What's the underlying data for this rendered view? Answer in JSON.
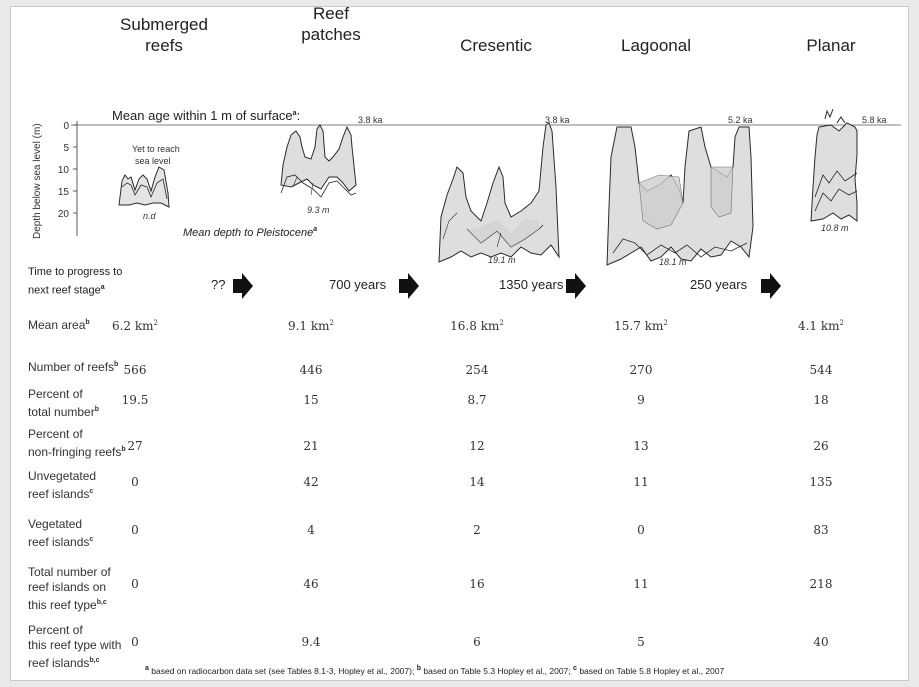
{
  "stages": [
    {
      "id": "submerged",
      "title_lines": [
        "Submerged",
        "reefs"
      ],
      "age": "",
      "depth": "n.d",
      "note_lines": [
        "Yet to reach",
        "sea level"
      ]
    },
    {
      "id": "patches",
      "title_lines": [
        "Reef",
        "patches"
      ],
      "age": "3.8 ka",
      "depth": "9.3 m"
    },
    {
      "id": "cresentic",
      "title_lines": [
        "Cresentic"
      ],
      "age": "3.8 ka",
      "depth": "19.1 m"
    },
    {
      "id": "lagoonal",
      "title_lines": [
        "Lagoonal"
      ],
      "age": "5.2 ka",
      "depth": "18.1 m"
    },
    {
      "id": "planar",
      "title_lines": [
        "Planar"
      ],
      "age": "5.8 ka",
      "depth": "10.8 m"
    }
  ],
  "diagram": {
    "mean_age_label": "Mean age within 1 m of surface",
    "mean_age_sup": "a",
    "mean_depth_label": "Mean depth to Pleistocene",
    "mean_depth_sup": "a",
    "y_axis_label": "Depth below  sea level (m)",
    "y_ticks": [
      "0",
      "5",
      "10",
      "15",
      "20"
    ]
  },
  "progress": {
    "label_lines": [
      "Time to progress to",
      "next reef stage"
    ],
    "label_sup": "a",
    "times": [
      "??",
      "700 years",
      "1350 years",
      "250 years"
    ]
  },
  "rows": [
    {
      "label_lines": [
        "Mean area"
      ],
      "sup": "b",
      "values": [
        "6.2 km",
        "9.1 km",
        "16.8 km",
        "15.7 km",
        "4.1 km"
      ],
      "value_sup": "2"
    },
    {
      "label_lines": [
        "Number of reefs"
      ],
      "sup": "b",
      "values": [
        "566",
        "446",
        "254",
        "270",
        "544"
      ]
    },
    {
      "label_lines": [
        "Percent of",
        "total number"
      ],
      "sup": "b",
      "values": [
        "19.5",
        "15",
        "8.7",
        "9",
        "18"
      ]
    },
    {
      "label_lines": [
        "Percent of",
        "non-fringing reefs"
      ],
      "sup": "b",
      "values": [
        "27",
        "21",
        "12",
        "13",
        "26"
      ]
    },
    {
      "label_lines": [
        "Unvegetated",
        "reef islands"
      ],
      "sup": "c",
      "values": [
        "0",
        "42",
        "14",
        "11",
        "135"
      ]
    },
    {
      "label_lines": [
        "Vegetated",
        "reef islands"
      ],
      "sup": "c",
      "values": [
        "0",
        "4",
        "2",
        "0",
        "83"
      ]
    },
    {
      "label_lines": [
        "Total number of",
        "reef islands on",
        "this reef type"
      ],
      "sup": "b,c",
      "values": [
        "0",
        "46",
        "16",
        "11",
        "218"
      ]
    },
    {
      "label_lines": [
        "Percent of",
        "this reef type with",
        "reef islands"
      ],
      "sup": "b,c",
      "values": [
        "0",
        "9.4",
        "6",
        "5",
        "40"
      ]
    }
  ],
  "footnotes": [
    {
      "sup": "a",
      "text": "based on radiocarbon data set (see Tables 8.1-3, Hopley et al., 2007);"
    },
    {
      "sup": "b",
      "text": "based on Table 5.3 Hopley et al., 2007;"
    },
    {
      "sup": "c",
      "text": "based on Table 5.8 Hopley et al., 2007"
    }
  ],
  "colors": {
    "reef_fill": "#dedede",
    "outline": "#2a2a2a",
    "sediment": "#c8c8c8",
    "arrow": "#111111"
  }
}
